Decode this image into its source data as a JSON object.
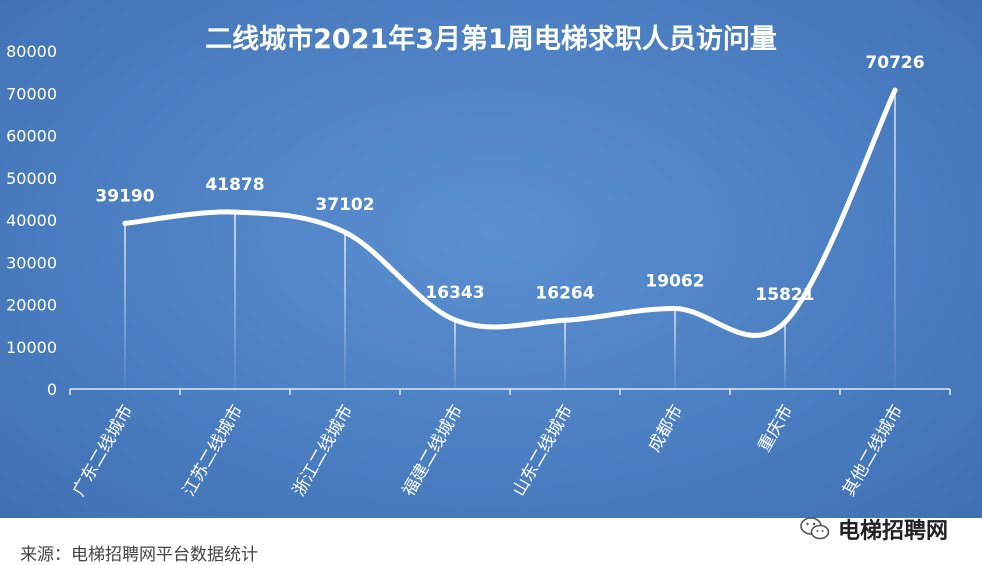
{
  "chart_data": {
    "type": "line",
    "title": "二线城市2021年3月第1周电梯求职人员访问量",
    "categories": [
      "广东二线城市",
      "江苏二线城市",
      "浙江二线城市",
      "福建二线城市",
      "山东二线城市",
      "成都市",
      "重庆市",
      "其他二线城市"
    ],
    "values": [
      39190,
      41878,
      37102,
      16343,
      16264,
      19062,
      15821,
      70726
    ],
    "ylim": [
      0,
      80000
    ],
    "yticks": [
      0,
      10000,
      20000,
      30000,
      40000,
      50000,
      60000,
      70000,
      80000
    ],
    "smooth": true,
    "grid": false,
    "colors": {
      "background": "#4b7fc2",
      "line": "#ffffff"
    }
  },
  "footer": {
    "source": "来源：电梯招聘网平台数据统计",
    "brand": "电梯招聘网",
    "brand_icon": "wechat-icon"
  }
}
